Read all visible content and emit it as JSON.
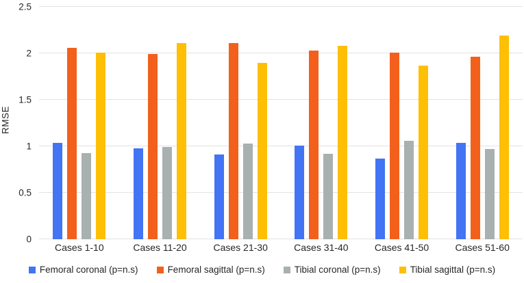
{
  "chart_data": {
    "type": "bar",
    "title": "",
    "xlabel": "",
    "ylabel": "RMSE",
    "ylim": [
      0,
      2.5
    ],
    "ytick_step": 0.5,
    "yticks": [
      "0",
      "0.5",
      "1",
      "1.5",
      "2",
      "2.5"
    ],
    "grid": true,
    "legend_position": "bottom",
    "categories": [
      "Cases 1-10",
      "Cases 11-20",
      "Cases 21-30",
      "Cases 31-40",
      "Cases 41-50",
      "Cases 51-60"
    ],
    "series": [
      {
        "name": "Femoral coronal (p=n.s)",
        "color": "#4274f4",
        "values": [
          1.04,
          0.98,
          0.91,
          1.01,
          0.87,
          1.04
        ]
      },
      {
        "name": "Femoral sagittal (p=n.s)",
        "color": "#f2601c",
        "values": [
          2.06,
          1.99,
          2.11,
          2.03,
          2.01,
          1.96
        ]
      },
      {
        "name": "Tibial coronal (p=n.s)",
        "color": "#a8b0b0",
        "values": [
          0.93,
          0.99,
          1.03,
          0.92,
          1.06,
          0.97
        ]
      },
      {
        "name": "Tibial sagittal (p=n.s)",
        "color": "#febf04",
        "values": [
          2.01,
          2.11,
          1.9,
          2.08,
          1.87,
          2.19
        ]
      }
    ],
    "colors": {
      "gridline": "#e2e2e2",
      "text": "#262626",
      "background": "#ffffff"
    }
  }
}
